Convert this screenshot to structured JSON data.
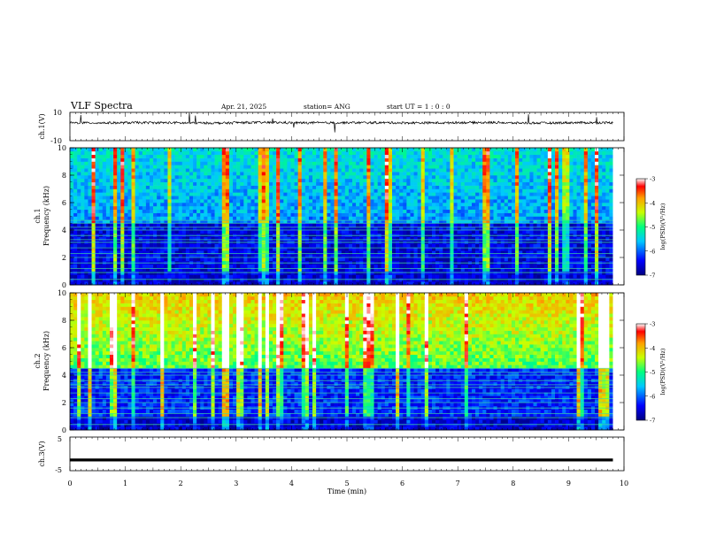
{
  "header": {
    "title": "VLF Spectra",
    "date": "Apr. 21, 2025",
    "station": "station= ANG",
    "start": "start  UT =   1 : 0  : 0"
  },
  "chart_data": [
    {
      "type": "line",
      "panel": "ch1-waveform",
      "ylabel": "ch.1(V)",
      "ylim": [
        -10,
        10
      ],
      "yticks": [
        "10",
        "-10"
      ],
      "x_range_min": [
        0,
        9.8
      ],
      "series": [
        {
          "values": [
            2.6,
            2.7,
            2.5,
            2.8,
            2.6,
            2.7,
            2.6,
            2.8,
            2.5,
            2.7
          ]
        }
      ]
    },
    {
      "type": "heatmap",
      "panel": "ch1-spectrogram",
      "ylabel": "ch.1\nFrequency (kHz)",
      "ylim": [
        0,
        10
      ],
      "yticks": [
        "0",
        "2",
        "4",
        "6",
        "8",
        "10"
      ],
      "colorbar": {
        "ticks": [
          "-3",
          "-4",
          "-5",
          "-6",
          "-7"
        ],
        "label": "log(PSD)(V²/Hz)",
        "range": [
          -7,
          -3
        ]
      },
      "lines_khz": [
        0.4,
        0.9,
        1.2,
        1.6,
        2.0,
        2.3,
        2.7,
        3.1,
        3.3,
        3.6,
        4.0,
        4.2,
        4.5,
        4.7
      ]
    },
    {
      "type": "heatmap",
      "panel": "ch2-spectrogram",
      "ylabel": "ch.2\nFrequency (kHz)",
      "ylim": [
        0,
        10
      ],
      "yticks": [
        "0",
        "2",
        "4",
        "6",
        "8",
        "10"
      ],
      "colorbar": {
        "ticks": [
          "-3",
          "-4",
          "-5",
          "-6",
          "-7"
        ],
        "label": "log(PSD)(V²/Hz)",
        "range": [
          -7,
          -3
        ]
      },
      "lines_khz": [
        0.4,
        0.9,
        1.2,
        1.6,
        2.0,
        2.3,
        2.7,
        3.1,
        3.3,
        3.6,
        4.0,
        4.2,
        4.5
      ]
    },
    {
      "type": "line",
      "panel": "ch3-waveform",
      "ylabel": "ch.3(V)",
      "ylim": [
        -5,
        5
      ],
      "yticks": [
        "5",
        "-5"
      ],
      "x_range_min": [
        0,
        9.8
      ],
      "series": [
        {
          "values": [
            -1.8,
            -1.8,
            -1.8,
            -1.8,
            -1.8,
            -1.8,
            -1.8,
            -1.8,
            -1.8,
            -1.8
          ]
        }
      ]
    }
  ],
  "xaxis": {
    "label": "Time  (min)",
    "ticks": [
      "0",
      "1",
      "2",
      "3",
      "4",
      "5",
      "6",
      "7",
      "8",
      "9",
      "10"
    ],
    "range": [
      0,
      10
    ]
  }
}
